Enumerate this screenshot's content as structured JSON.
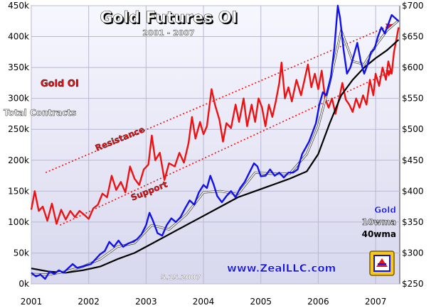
{
  "chart_data": {
    "type": "line",
    "title": "Gold Futures OI",
    "subtitle": "2001 - 2007",
    "x_ticks": [
      "2001",
      "2002",
      "2003",
      "2004",
      "2005",
      "2006",
      "2007"
    ],
    "x_range": [
      2001.0,
      2007.42
    ],
    "left_axis": {
      "range": [
        0,
        450000
      ],
      "ticks": [
        0,
        50000,
        100000,
        150000,
        200000,
        250000,
        300000,
        350000,
        400000,
        450000
      ],
      "tick_labels": [
        "0k",
        "50k",
        "100k",
        "150k",
        "200k",
        "250k",
        "300k",
        "350k",
        "400k",
        "450k"
      ]
    },
    "right_axis": {
      "range": [
        250,
        700
      ],
      "ticks": [
        250,
        300,
        350,
        400,
        450,
        500,
        550,
        600,
        650,
        700
      ],
      "tick_labels": [
        "$250",
        "$300",
        "$350",
        "$400",
        "$450",
        "$500",
        "$550",
        "$600",
        "$650",
        "$700"
      ]
    },
    "grid": true,
    "labels": {
      "gold_oi": "Gold OI",
      "total_contracts": "Total Contracts",
      "resistance": "Resistance",
      "support": "Support",
      "gold": "Gold",
      "wma10": "10wma",
      "wma40": "40wma",
      "date": "5.15.2007",
      "website": "www.ZealLLC.com"
    },
    "series": [
      {
        "name": "Gold OI",
        "axis": "left",
        "color": "#ee1111",
        "points": [
          [
            2001.0,
            120000
          ],
          [
            2001.06,
            150000
          ],
          [
            2001.13,
            118000
          ],
          [
            2001.2,
            125000
          ],
          [
            2001.28,
            102000
          ],
          [
            2001.36,
            130000
          ],
          [
            2001.44,
            97000
          ],
          [
            2001.52,
            120000
          ],
          [
            2001.6,
            104000
          ],
          [
            2001.68,
            118000
          ],
          [
            2001.76,
            108000
          ],
          [
            2001.84,
            118000
          ],
          [
            2001.92,
            112000
          ],
          [
            2002.0,
            105000
          ],
          [
            2002.08,
            122000
          ],
          [
            2002.16,
            128000
          ],
          [
            2002.24,
            146000
          ],
          [
            2002.32,
            140000
          ],
          [
            2002.4,
            175000
          ],
          [
            2002.48,
            152000
          ],
          [
            2002.56,
            165000
          ],
          [
            2002.64,
            148000
          ],
          [
            2002.72,
            190000
          ],
          [
            2002.8,
            170000
          ],
          [
            2002.88,
            160000
          ],
          [
            2002.96,
            185000
          ],
          [
            2003.04,
            193000
          ],
          [
            2003.1,
            240000
          ],
          [
            2003.16,
            200000
          ],
          [
            2003.24,
            212000
          ],
          [
            2003.32,
            168000
          ],
          [
            2003.4,
            195000
          ],
          [
            2003.5,
            190000
          ],
          [
            2003.58,
            212000
          ],
          [
            2003.66,
            196000
          ],
          [
            2003.74,
            228000
          ],
          [
            2003.8,
            270000
          ],
          [
            2003.86,
            235000
          ],
          [
            2003.94,
            262000
          ],
          [
            2004.0,
            242000
          ],
          [
            2004.06,
            255000
          ],
          [
            2004.14,
            315000
          ],
          [
            2004.2,
            290000
          ],
          [
            2004.28,
            265000
          ],
          [
            2004.34,
            230000
          ],
          [
            2004.4,
            260000
          ],
          [
            2004.48,
            252000
          ],
          [
            2004.56,
            290000
          ],
          [
            2004.62,
            262000
          ],
          [
            2004.7,
            300000
          ],
          [
            2004.76,
            255000
          ],
          [
            2004.84,
            290000
          ],
          [
            2004.9,
            262000
          ],
          [
            2004.96,
            300000
          ],
          [
            2005.02,
            285000
          ],
          [
            2005.08,
            255000
          ],
          [
            2005.14,
            290000
          ],
          [
            2005.2,
            270000
          ],
          [
            2005.26,
            295000
          ],
          [
            2005.32,
            325000
          ],
          [
            2005.36,
            358000
          ],
          [
            2005.42,
            300000
          ],
          [
            2005.48,
            318000
          ],
          [
            2005.54,
            295000
          ],
          [
            2005.62,
            330000
          ],
          [
            2005.7,
            305000
          ],
          [
            2005.76,
            330000
          ],
          [
            2005.82,
            355000
          ],
          [
            2005.88,
            318000
          ],
          [
            2005.94,
            340000
          ],
          [
            2006.0,
            315000
          ],
          [
            2006.06,
            345000
          ],
          [
            2006.12,
            300000
          ],
          [
            2006.18,
            285000
          ],
          [
            2006.24,
            300000
          ],
          [
            2006.3,
            275000
          ],
          [
            2006.36,
            298000
          ],
          [
            2006.42,
            325000
          ],
          [
            2006.48,
            298000
          ],
          [
            2006.54,
            290000
          ],
          [
            2006.6,
            278000
          ],
          [
            2006.66,
            300000
          ],
          [
            2006.72,
            285000
          ],
          [
            2006.78,
            305000
          ],
          [
            2006.84,
            290000
          ],
          [
            2006.9,
            330000
          ],
          [
            2006.96,
            305000
          ],
          [
            2007.0,
            340000
          ],
          [
            2007.06,
            320000
          ],
          [
            2007.12,
            350000
          ],
          [
            2007.18,
            330000
          ],
          [
            2007.22,
            360000
          ],
          [
            2007.28,
            340000
          ],
          [
            2007.32,
            375000
          ],
          [
            2007.36,
            395000
          ],
          [
            2007.4,
            415000
          ]
        ]
      },
      {
        "name": "Gold",
        "axis": "right",
        "color": "#1111ee",
        "points": [
          [
            2001.0,
            268
          ],
          [
            2001.08,
            262
          ],
          [
            2001.16,
            265
          ],
          [
            2001.24,
            258
          ],
          [
            2001.32,
            270
          ],
          [
            2001.4,
            266
          ],
          [
            2001.48,
            272
          ],
          [
            2001.56,
            268
          ],
          [
            2001.64,
            275
          ],
          [
            2001.72,
            282
          ],
          [
            2001.8,
            276
          ],
          [
            2001.88,
            278
          ],
          [
            2001.96,
            280
          ],
          [
            2002.04,
            282
          ],
          [
            2002.12,
            290
          ],
          [
            2002.2,
            298
          ],
          [
            2002.28,
            303
          ],
          [
            2002.36,
            318
          ],
          [
            2002.44,
            310
          ],
          [
            2002.52,
            320
          ],
          [
            2002.6,
            310
          ],
          [
            2002.68,
            315
          ],
          [
            2002.76,
            318
          ],
          [
            2002.84,
            322
          ],
          [
            2002.92,
            330
          ],
          [
            2003.0,
            345
          ],
          [
            2003.06,
            365
          ],
          [
            2003.12,
            352
          ],
          [
            2003.2,
            332
          ],
          [
            2003.28,
            328
          ],
          [
            2003.36,
            345
          ],
          [
            2003.44,
            356
          ],
          [
            2003.52,
            350
          ],
          [
            2003.6,
            358
          ],
          [
            2003.68,
            372
          ],
          [
            2003.76,
            385
          ],
          [
            2003.84,
            378
          ],
          [
            2003.92,
            398
          ],
          [
            2004.0,
            410
          ],
          [
            2004.06,
            405
          ],
          [
            2004.12,
            425
          ],
          [
            2004.18,
            410
          ],
          [
            2004.24,
            392
          ],
          [
            2004.32,
            382
          ],
          [
            2004.4,
            392
          ],
          [
            2004.48,
            400
          ],
          [
            2004.56,
            390
          ],
          [
            2004.64,
            405
          ],
          [
            2004.72,
            415
          ],
          [
            2004.8,
            430
          ],
          [
            2004.88,
            445
          ],
          [
            2004.94,
            440
          ],
          [
            2005.0,
            424
          ],
          [
            2005.08,
            425
          ],
          [
            2005.16,
            435
          ],
          [
            2005.24,
            425
          ],
          [
            2005.32,
            430
          ],
          [
            2005.4,
            422
          ],
          [
            2005.48,
            430
          ],
          [
            2005.56,
            430
          ],
          [
            2005.64,
            435
          ],
          [
            2005.72,
            460
          ],
          [
            2005.78,
            470
          ],
          [
            2005.84,
            480
          ],
          [
            2005.9,
            495
          ],
          [
            2005.96,
            510
          ],
          [
            2006.02,
            540
          ],
          [
            2006.08,
            560
          ],
          [
            2006.14,
            555
          ],
          [
            2006.22,
            585
          ],
          [
            2006.28,
            630
          ],
          [
            2006.34,
            700
          ],
          [
            2006.38,
            680
          ],
          [
            2006.44,
            630
          ],
          [
            2006.5,
            590
          ],
          [
            2006.56,
            600
          ],
          [
            2006.62,
            620
          ],
          [
            2006.68,
            640
          ],
          [
            2006.74,
            610
          ],
          [
            2006.8,
            590
          ],
          [
            2006.86,
            605
          ],
          [
            2006.92,
            625
          ],
          [
            2006.98,
            630
          ],
          [
            2007.04,
            650
          ],
          [
            2007.1,
            665
          ],
          [
            2007.16,
            655
          ],
          [
            2007.22,
            670
          ],
          [
            2007.28,
            685
          ],
          [
            2007.34,
            680
          ],
          [
            2007.4,
            675
          ]
        ]
      },
      {
        "name": "10wma",
        "axis": "right",
        "color": "#ffffff",
        "points": [
          [
            2001.0,
            266
          ],
          [
            2001.3,
            265
          ],
          [
            2001.6,
            270
          ],
          [
            2001.9,
            278
          ],
          [
            2002.2,
            290
          ],
          [
            2002.5,
            310
          ],
          [
            2002.8,
            316
          ],
          [
            2003.1,
            345
          ],
          [
            2003.4,
            338
          ],
          [
            2003.7,
            362
          ],
          [
            2004.0,
            398
          ],
          [
            2004.3,
            400
          ],
          [
            2004.6,
            395
          ],
          [
            2004.9,
            430
          ],
          [
            2005.2,
            428
          ],
          [
            2005.5,
            428
          ],
          [
            2005.8,
            460
          ],
          [
            2006.0,
            505
          ],
          [
            2006.2,
            575
          ],
          [
            2006.4,
            660
          ],
          [
            2006.6,
            610
          ],
          [
            2006.8,
            605
          ],
          [
            2007.0,
            635
          ],
          [
            2007.2,
            660
          ],
          [
            2007.4,
            676
          ]
        ]
      },
      {
        "name": "40wma",
        "axis": "right",
        "color": "#000000",
        "points": [
          [
            2001.0,
            275
          ],
          [
            2001.3,
            270
          ],
          [
            2001.6,
            268
          ],
          [
            2001.9,
            272
          ],
          [
            2002.2,
            278
          ],
          [
            2002.5,
            290
          ],
          [
            2002.8,
            300
          ],
          [
            2003.1,
            315
          ],
          [
            2003.4,
            330
          ],
          [
            2003.7,
            345
          ],
          [
            2004.0,
            360
          ],
          [
            2004.3,
            375
          ],
          [
            2004.6,
            390
          ],
          [
            2004.9,
            400
          ],
          [
            2005.2,
            410
          ],
          [
            2005.5,
            420
          ],
          [
            2005.8,
            432
          ],
          [
            2006.0,
            460
          ],
          [
            2006.2,
            510
          ],
          [
            2006.4,
            555
          ],
          [
            2006.6,
            580
          ],
          [
            2006.8,
            600
          ],
          [
            2007.0,
            615
          ],
          [
            2007.2,
            628
          ],
          [
            2007.4,
            645
          ]
        ]
      }
    ],
    "annotations": [
      {
        "name": "Resistance",
        "axis": "left",
        "color": "#ee1111",
        "from": [
          2001.25,
          180000
        ],
        "to": [
          2007.3,
          420000
        ]
      },
      {
        "name": "Support",
        "axis": "left",
        "color": "#ee1111",
        "from": [
          2001.5,
          95000
        ],
        "to": [
          2007.3,
          345000
        ]
      }
    ]
  }
}
